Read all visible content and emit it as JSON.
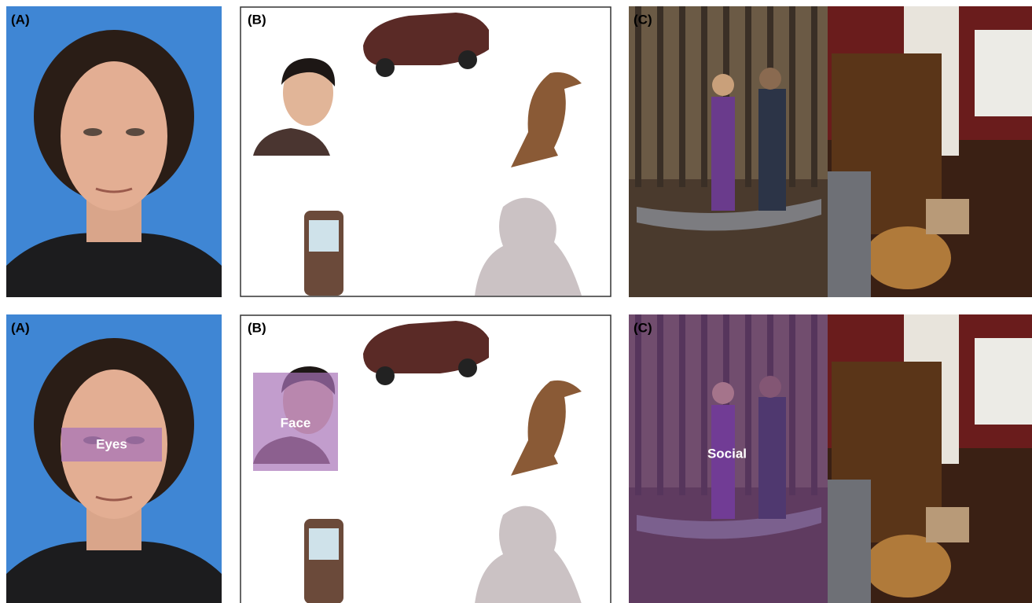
{
  "rows": [
    {
      "panels": [
        {
          "label": "(A)"
        },
        {
          "label": "(B)"
        },
        {
          "label": "(C)"
        }
      ]
    },
    {
      "panels": [
        {
          "label": "(A)",
          "aoi": "Eyes"
        },
        {
          "label": "(B)",
          "aoi": "Face"
        },
        {
          "label": "(C)",
          "aoi": "Social"
        }
      ]
    }
  ]
}
